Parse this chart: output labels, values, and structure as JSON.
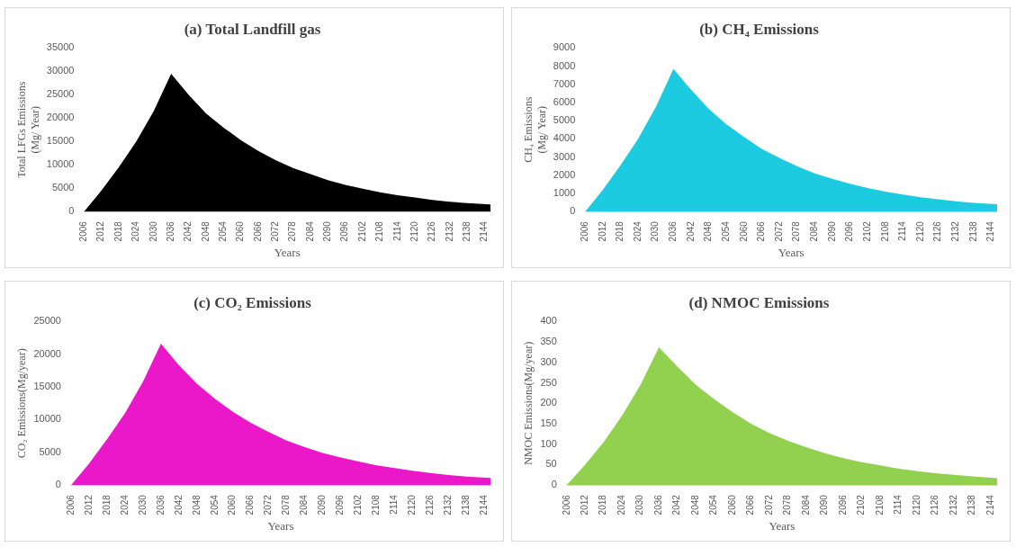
{
  "chart_data": [
    {
      "type": "area",
      "title": "(a) Total Landfill gas",
      "xlabel": "Years",
      "ylabel": "Total LFGs Emissions\n(Mg/ Year)",
      "x": [
        2006,
        2012,
        2018,
        2024,
        2030,
        2036,
        2042,
        2048,
        2054,
        2060,
        2066,
        2072,
        2078,
        2084,
        2090,
        2096,
        2102,
        2108,
        2114,
        2120,
        2126,
        2132,
        2138,
        2146
      ],
      "series": [
        {
          "color": "#000000",
          "values": [
            0,
            4500,
            9500,
            15000,
            21500,
            29500,
            25000,
            21000,
            18000,
            15300,
            13000,
            11000,
            9300,
            8000,
            6700,
            5700,
            4900,
            4100,
            3500,
            3000,
            2500,
            2100,
            1800,
            1500
          ]
        }
      ],
      "xlim": [
        2006,
        2146
      ],
      "xticks": [
        2006,
        2012,
        2018,
        2024,
        2030,
        2036,
        2042,
        2048,
        2054,
        2060,
        2066,
        2072,
        2078,
        2084,
        2090,
        2096,
        2102,
        2108,
        2114,
        2120,
        2126,
        2132,
        2138,
        2144
      ],
      "ylim": [
        0,
        35000
      ],
      "yticks": [
        0,
        5000,
        10000,
        15000,
        20000,
        25000,
        30000,
        35000
      ],
      "grid": false,
      "legend": false
    },
    {
      "type": "area",
      "title": "(b) CH₄ Emissions",
      "xlabel": "Years",
      "ylabel": "CH₄ Emissions\n(Mg/ Year)",
      "x": [
        2006,
        2012,
        2018,
        2024,
        2030,
        2036,
        2042,
        2048,
        2054,
        2060,
        2066,
        2072,
        2078,
        2084,
        2090,
        2096,
        2102,
        2108,
        2114,
        2120,
        2126,
        2132,
        2138,
        2146
      ],
      "series": [
        {
          "color": "#1ccbe0",
          "values": [
            0,
            1200,
            2550,
            4000,
            5750,
            7850,
            6700,
            5650,
            4800,
            4100,
            3450,
            2950,
            2500,
            2100,
            1800,
            1530,
            1300,
            1100,
            930,
            790,
            670,
            570,
            480,
            400
          ]
        }
      ],
      "xlim": [
        2006,
        2146
      ],
      "xticks": [
        2006,
        2012,
        2018,
        2024,
        2030,
        2036,
        2042,
        2048,
        2054,
        2060,
        2066,
        2072,
        2078,
        2084,
        2090,
        2096,
        2102,
        2108,
        2114,
        2120,
        2126,
        2132,
        2138,
        2144
      ],
      "ylim": [
        0,
        9000
      ],
      "yticks": [
        0,
        1000,
        2000,
        3000,
        4000,
        5000,
        6000,
        7000,
        8000,
        9000
      ],
      "grid": false,
      "legend": false
    },
    {
      "type": "area",
      "title": "(c) CO₂ Emissions",
      "xlabel": "Years",
      "ylabel": "CO₂ Emissions(Mg/year)",
      "x": [
        2006,
        2012,
        2018,
        2024,
        2030,
        2036,
        2042,
        2048,
        2054,
        2060,
        2066,
        2072,
        2078,
        2084,
        2090,
        2096,
        2102,
        2108,
        2114,
        2120,
        2126,
        2132,
        2138,
        2146
      ],
      "series": [
        {
          "color": "#ea18c8",
          "values": [
            0,
            3300,
            7000,
            11000,
            15800,
            21600,
            18300,
            15500,
            13200,
            11200,
            9500,
            8100,
            6800,
            5800,
            4900,
            4200,
            3600,
            3000,
            2600,
            2200,
            1850,
            1550,
            1300,
            1100
          ]
        }
      ],
      "xlim": [
        2006,
        2146
      ],
      "xticks": [
        2006,
        2012,
        2018,
        2024,
        2030,
        2036,
        2042,
        2048,
        2054,
        2060,
        2066,
        2072,
        2078,
        2084,
        2090,
        2096,
        2102,
        2108,
        2114,
        2120,
        2126,
        2132,
        2138,
        2144
      ],
      "ylim": [
        0,
        25000
      ],
      "yticks": [
        0,
        5000,
        10000,
        15000,
        20000,
        25000
      ],
      "grid": false,
      "legend": false
    },
    {
      "type": "area",
      "title": "(d) NMOC Emissions",
      "xlabel": "Years",
      "ylabel": "NMOC Emissions(Mg/year)",
      "x": [
        2006,
        2012,
        2018,
        2024,
        2030,
        2036,
        2042,
        2048,
        2054,
        2060,
        2066,
        2072,
        2078,
        2084,
        2090,
        2096,
        2102,
        2108,
        2114,
        2120,
        2126,
        2132,
        2138,
        2146
      ],
      "series": [
        {
          "color": "#92d050",
          "values": [
            0,
            50,
            105,
            170,
            245,
            337,
            290,
            245,
            210,
            178,
            150,
            127,
            108,
            92,
            78,
            66,
            56,
            48,
            40,
            34,
            29,
            25,
            21,
            17
          ]
        }
      ],
      "xlim": [
        2006,
        2146
      ],
      "xticks": [
        2006,
        2012,
        2018,
        2024,
        2030,
        2036,
        2042,
        2048,
        2054,
        2060,
        2066,
        2072,
        2078,
        2084,
        2090,
        2096,
        2102,
        2108,
        2114,
        2120,
        2126,
        2132,
        2138,
        2144
      ],
      "ylim": [
        0,
        400
      ],
      "yticks": [
        0,
        50,
        100,
        150,
        200,
        250,
        300,
        350,
        400
      ],
      "grid": false,
      "legend": false
    }
  ]
}
